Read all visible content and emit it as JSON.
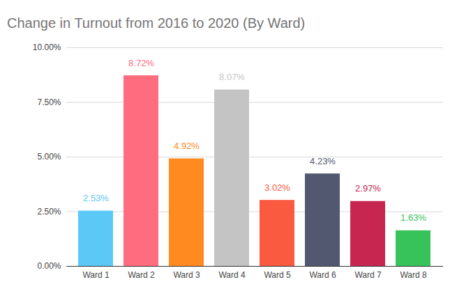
{
  "chart_data": {
    "type": "bar",
    "title": "Change in Turnout from 2016 to 2020 (By Ward)",
    "categories": [
      "Ward 1",
      "Ward 2",
      "Ward 3",
      "Ward 4",
      "Ward 5",
      "Ward 6",
      "Ward 7",
      "Ward 8"
    ],
    "values": [
      2.53,
      8.72,
      4.92,
      8.07,
      3.02,
      4.23,
      2.97,
      1.63
    ],
    "value_labels": [
      "2.53%",
      "8.72%",
      "4.92%",
      "8.07%",
      "3.02%",
      "4.23%",
      "2.97%",
      "1.63%"
    ],
    "colors": [
      "#5bc8f5",
      "#ff6b7f",
      "#ff8a1f",
      "#c4c4c4",
      "#f95a40",
      "#525870",
      "#c72651",
      "#37c35a"
    ],
    "ylim": [
      0,
      10
    ],
    "yticks": [
      {
        "value": 0,
        "label": "0.00%"
      },
      {
        "value": 2.5,
        "label": "2.50%"
      },
      {
        "value": 5,
        "label": "5.00%"
      },
      {
        "value": 7.5,
        "label": "7.50%"
      },
      {
        "value": 10,
        "label": "10.00%"
      }
    ],
    "grid": true,
    "data_labels": true
  }
}
